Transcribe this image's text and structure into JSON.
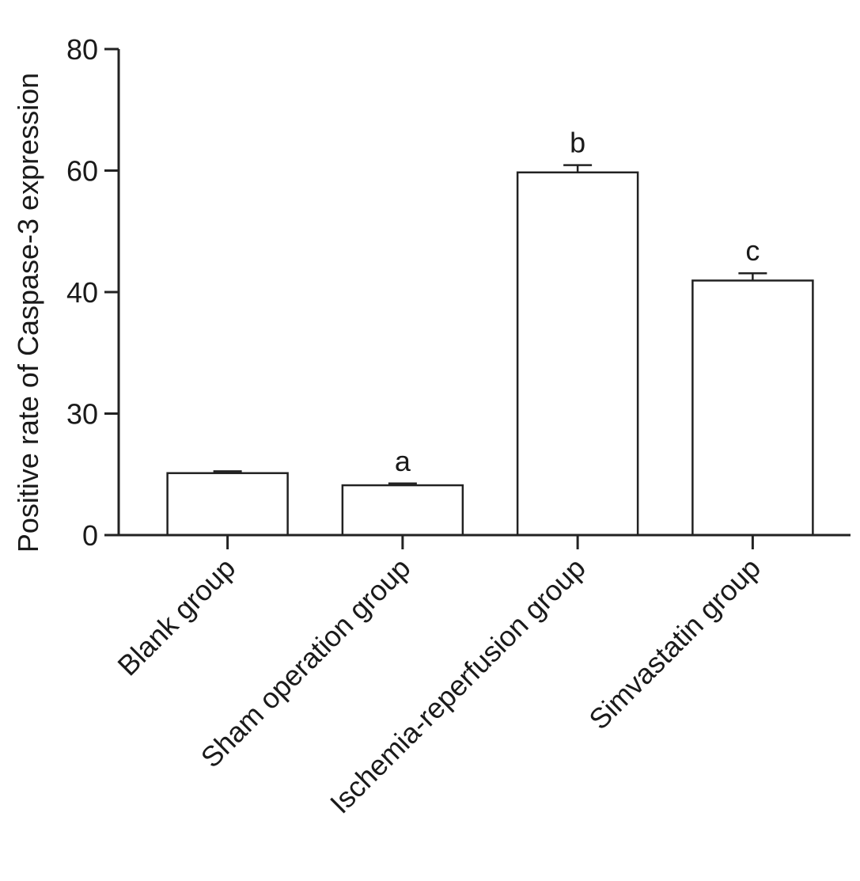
{
  "chart_data": {
    "type": "bar",
    "title": "",
    "xlabel": "",
    "ylabel": "Positive rate of Caspase-3 expression",
    "yticks": [
      "0",
      "30",
      "40",
      "60",
      "80"
    ],
    "categories": [
      "Blank group",
      "Sham operation group",
      "Ischemia-reperfusion group",
      "Simvastatin group"
    ],
    "series": [
      {
        "values": [
          10.2,
          8.2,
          59.7,
          41.9
        ],
        "errors": [
          0.3,
          0.3,
          1.2,
          1.2
        ],
        "annotations": [
          "",
          "a",
          "b",
          "c"
        ]
      }
    ],
    "ylim": [
      0,
      80
    ],
    "grid": false,
    "legend": "none",
    "colors": {
      "bar_fill": "#ffffff",
      "bar_stroke": "#222222",
      "axis": "#222222"
    }
  }
}
